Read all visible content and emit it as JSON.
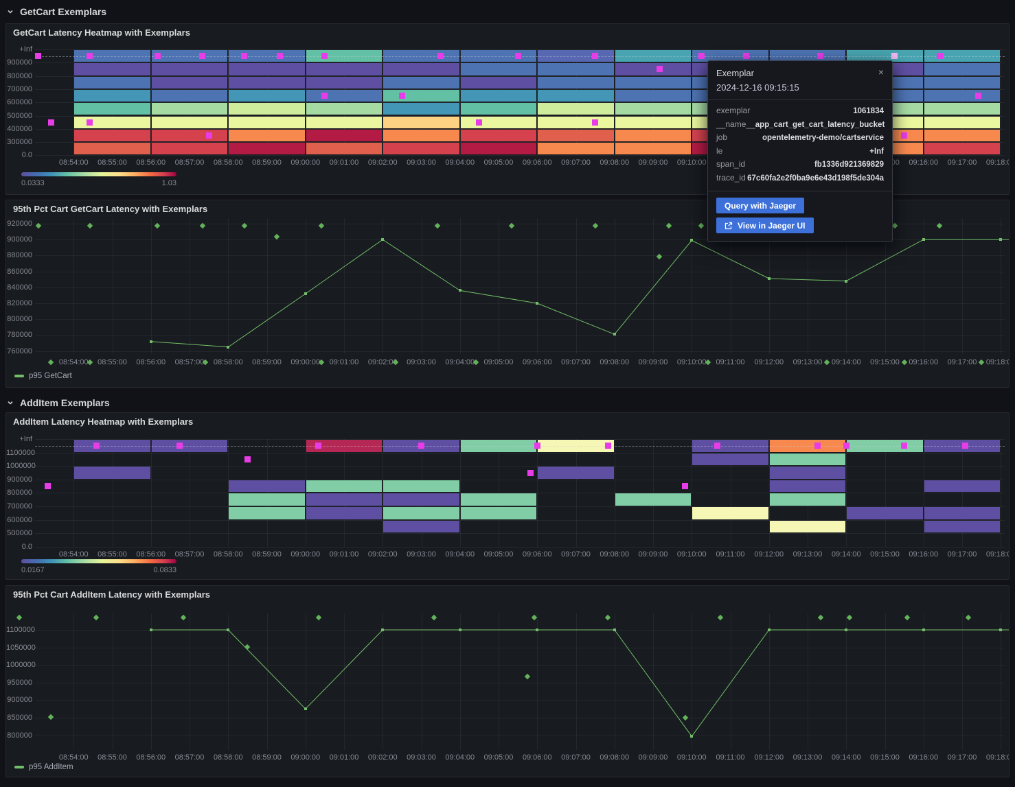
{
  "sections": [
    {
      "title": "GetCart Exemplars"
    },
    {
      "title": "AddItem Exemplars"
    }
  ],
  "axis": {
    "x_ticks": [
      "08:54:00",
      "08:55:00",
      "08:56:00",
      "08:57:00",
      "08:58:00",
      "08:59:00",
      "09:00:00",
      "09:01:00",
      "09:02:00",
      "09:03:00",
      "09:04:00",
      "09:05:00",
      "09:06:00",
      "09:07:00",
      "09:08:00",
      "09:09:00",
      "09:10:00",
      "09:11:00",
      "09:12:00",
      "09:13:00",
      "09:14:00",
      "09:15:00",
      "09:16:00",
      "09:17:00",
      "09:18:00"
    ]
  },
  "palette": {
    "P": "#5e4fa2",
    "B": "#4d73b2",
    "BP": "#5767b2",
    "T": "#4396b5",
    "T2": "#47a4b0",
    "TG": "#62c0a4",
    "G": "#a5daa3",
    "YG": "#cfec9d",
    "PY": "#eaf79e",
    "PE": "#fdd283",
    "O": "#f7894f",
    "OR": "#e0604d",
    "R": "#d5424e",
    "C": "#b41b44",
    "C2": "#b52755",
    "G2": "#80cda6",
    "PY2": "#f6f7b4"
  },
  "colors": {
    "line_green": "#73bf69",
    "exemplar_magenta": "#e93ce9",
    "exemplar_selected": "#eeb7ee",
    "diamond_green": "#63b25a"
  },
  "panels": {
    "hm_getcart": {
      "title": "GetCart Latency Heatmap with Exemplars",
      "y_ticks": [
        "+Inf",
        "900000",
        "800000",
        "700000",
        "600000",
        "500000",
        "400000",
        "300000",
        "0.0"
      ],
      "rows": [
        [
          "B",
          "B",
          "B",
          "TG",
          "B",
          "B",
          "BP",
          "T2",
          "B",
          "B",
          "T2",
          "T2"
        ],
        [
          "P",
          "P",
          "P",
          "P",
          "P",
          "B",
          "B",
          "P",
          "P",
          "P",
          "P",
          "B"
        ],
        [
          "B",
          "P",
          "P",
          "P",
          "B",
          "P",
          "B",
          "B",
          "B",
          "B",
          "B",
          "B"
        ],
        [
          "T",
          "B",
          "T",
          "B",
          "TG",
          "T",
          "T",
          "B",
          "B",
          "B",
          "B",
          "B"
        ],
        [
          "TG",
          "G",
          "YG",
          "G",
          "T",
          "TG",
          "YG",
          "G",
          "G",
          "G",
          "G",
          "G"
        ],
        [
          "PY",
          "PY",
          "PY",
          "PY",
          "PE",
          "PY",
          "PY",
          "PY",
          "PY",
          "PY",
          "PY",
          "PY"
        ],
        [
          "R",
          "R",
          "O",
          "C",
          "O",
          "R",
          "OR",
          "O",
          "R",
          "R",
          "O",
          "O"
        ],
        [
          "OR",
          "R",
          "C",
          "OR",
          "R",
          "C",
          "O",
          "O",
          "C",
          "R",
          "O",
          "R"
        ]
      ],
      "exemplars": [
        {
          "t": "08:53:05",
          "row": 0
        },
        {
          "t": "08:54:25",
          "row": 0
        },
        {
          "t": "08:56:10",
          "row": 0
        },
        {
          "t": "08:57:20",
          "row": 0
        },
        {
          "t": "08:58:25",
          "row": 0
        },
        {
          "t": "08:59:20",
          "row": 0
        },
        {
          "t": "09:00:30",
          "row": 0
        },
        {
          "t": "09:03:30",
          "row": 0
        },
        {
          "t": "09:05:30",
          "row": 0
        },
        {
          "t": "09:07:30",
          "row": 0
        },
        {
          "t": "09:10:15",
          "row": 0
        },
        {
          "t": "09:11:25",
          "row": 0
        },
        {
          "t": "09:13:20",
          "row": 0
        },
        {
          "t": "09:15:15",
          "row": 0,
          "selected": true
        },
        {
          "t": "09:16:25",
          "row": 0
        },
        {
          "t": "09:09:10",
          "row": 1
        },
        {
          "t": "09:00:30",
          "row": 3
        },
        {
          "t": "09:02:30",
          "row": 3
        },
        {
          "t": "09:17:25",
          "row": 3
        },
        {
          "t": "08:53:25",
          "row": 5
        },
        {
          "t": "08:54:25",
          "row": 5
        },
        {
          "t": "09:04:30",
          "row": 5
        },
        {
          "t": "09:07:30",
          "row": 5
        },
        {
          "t": "08:57:30",
          "row": 6
        },
        {
          "t": "09:15:30",
          "row": 6
        }
      ],
      "legend": {
        "min": "0.0333",
        "max": "1.03"
      }
    },
    "ts_getcart": {
      "title": "95th Pct Cart GetCart Latency with Exemplars",
      "y_ticks": [
        "920000",
        "900000",
        "880000",
        "860000",
        "840000",
        "820000",
        "800000",
        "780000",
        "760000"
      ],
      "series": {
        "name": "p95 GetCart",
        "points": [
          {
            "t": "08:56:00",
            "v": 772000
          },
          {
            "t": "08:58:00",
            "v": 765000
          },
          {
            "t": "09:00:00",
            "v": 832000
          },
          {
            "t": "09:02:00",
            "v": 900000
          },
          {
            "t": "09:04:00",
            "v": 836000
          },
          {
            "t": "09:06:00",
            "v": 820000
          },
          {
            "t": "09:08:00",
            "v": 781000
          },
          {
            "t": "09:10:00",
            "v": 899000
          },
          {
            "t": "09:12:00",
            "v": 851000
          },
          {
            "t": "09:14:00",
            "v": 848000
          },
          {
            "t": "09:16:00",
            "v": 900000
          },
          {
            "t": "09:18:00",
            "v": 900000
          }
        ]
      },
      "exemplars": [
        {
          "t": "08:53:05",
          "v": 917500
        },
        {
          "t": "08:54:25",
          "v": 917500
        },
        {
          "t": "08:56:10",
          "v": 917500
        },
        {
          "t": "08:57:20",
          "v": 917500
        },
        {
          "t": "08:58:25",
          "v": 917500
        },
        {
          "t": "09:00:25",
          "v": 917500
        },
        {
          "t": "09:03:25",
          "v": 917500
        },
        {
          "t": "09:05:20",
          "v": 917500
        },
        {
          "t": "09:07:30",
          "v": 917500
        },
        {
          "t": "09:09:25",
          "v": 917500
        },
        {
          "t": "09:10:15",
          "v": 917500
        },
        {
          "t": "09:15:15",
          "v": 917500
        },
        {
          "t": "09:16:25",
          "v": 917500
        },
        {
          "t": "08:59:15",
          "v": 904000
        },
        {
          "t": "09:09:10",
          "v": 879000
        },
        {
          "t": "08:53:25",
          "v": 746000
        },
        {
          "t": "08:54:25",
          "v": 746000
        },
        {
          "t": "08:57:25",
          "v": 746000
        },
        {
          "t": "09:00:25",
          "v": 746000
        },
        {
          "t": "09:02:20",
          "v": 746000
        },
        {
          "t": "09:04:25",
          "v": 746000
        },
        {
          "t": "09:10:25",
          "v": 746000
        },
        {
          "t": "09:13:30",
          "v": 746000
        },
        {
          "t": "09:15:30",
          "v": 746000
        },
        {
          "t": "09:17:30",
          "v": 746000
        }
      ]
    },
    "hm_additem": {
      "title": "AddItem Latency Heatmap with Exemplars",
      "y_ticks": [
        "+Inf",
        "1100000",
        "1000000",
        "900000",
        "800000",
        "700000",
        "600000",
        "500000",
        "0.0"
      ],
      "rows": [
        [
          "P",
          "P",
          "",
          "C2",
          "P",
          "G2",
          "PY2",
          "",
          "P",
          "O",
          "G2",
          "P"
        ],
        [
          "",
          "",
          "",
          "",
          "",
          "",
          "",
          "",
          "P",
          "G2",
          "",
          ""
        ],
        [
          "P",
          "",
          "",
          "",
          "",
          "",
          "P",
          "",
          "",
          "P",
          "",
          ""
        ],
        [
          "",
          "",
          "P",
          "G2",
          "G2",
          "",
          "",
          "",
          "",
          "P",
          "",
          "P"
        ],
        [
          "",
          "",
          "G2",
          "P",
          "P",
          "G2",
          "",
          "G2",
          "",
          "G2",
          "",
          ""
        ],
        [
          "",
          "",
          "G2",
          "P",
          "G2",
          "G2",
          "",
          "",
          "PY2",
          "",
          "P",
          "P"
        ],
        [
          "",
          "",
          "",
          "",
          "P",
          "",
          "",
          "",
          "",
          "PY2",
          "",
          "P"
        ],
        [
          "",
          "",
          "",
          "",
          "",
          "",
          "",
          "",
          "",
          "",
          "",
          ""
        ]
      ],
      "exemplars": [
        {
          "t": "08:54:35",
          "row": 0
        },
        {
          "t": "08:56:45",
          "row": 0
        },
        {
          "t": "09:00:20",
          "row": 0
        },
        {
          "t": "09:03:00",
          "row": 0
        },
        {
          "t": "09:06:00",
          "row": 0
        },
        {
          "t": "09:07:50",
          "row": 0
        },
        {
          "t": "09:10:40",
          "row": 0
        },
        {
          "t": "09:13:15",
          "row": 0
        },
        {
          "t": "09:14:00",
          "row": 0
        },
        {
          "t": "09:15:30",
          "row": 0
        },
        {
          "t": "09:17:05",
          "row": 0
        },
        {
          "t": "08:58:30",
          "row": 1
        },
        {
          "t": "09:05:50",
          "row": 2
        },
        {
          "t": "08:53:20",
          "row": 3
        },
        {
          "t": "09:09:50",
          "row": 3
        }
      ],
      "legend": {
        "min": "0.0167",
        "max": "0.0833"
      }
    },
    "ts_additem": {
      "title": "95th Pct Cart AddItem Latency with Exemplars",
      "y_ticks": [
        "1100000",
        "1050000",
        "1000000",
        "950000",
        "900000",
        "850000",
        "800000"
      ],
      "series": {
        "name": "p95 AddItem",
        "points": [
          {
            "t": "08:56:00",
            "v": 1100000
          },
          {
            "t": "08:58:00",
            "v": 1100000
          },
          {
            "t": "09:00:00",
            "v": 875000
          },
          {
            "t": "09:02:00",
            "v": 1100000
          },
          {
            "t": "09:04:00",
            "v": 1100000
          },
          {
            "t": "09:06:00",
            "v": 1100000
          },
          {
            "t": "09:08:00",
            "v": 1100000
          },
          {
            "t": "09:10:00",
            "v": 797000
          },
          {
            "t": "09:12:00",
            "v": 1100000
          },
          {
            "t": "09:14:00",
            "v": 1100000
          },
          {
            "t": "09:16:00",
            "v": 1100000
          },
          {
            "t": "09:18:00",
            "v": 1100000
          }
        ]
      },
      "exemplars": [
        {
          "t": "08:52:35",
          "v": 1135000
        },
        {
          "t": "08:54:35",
          "v": 1135000
        },
        {
          "t": "08:56:50",
          "v": 1135000
        },
        {
          "t": "09:00:20",
          "v": 1135000
        },
        {
          "t": "09:03:20",
          "v": 1135000
        },
        {
          "t": "09:05:55",
          "v": 1135000
        },
        {
          "t": "09:07:50",
          "v": 1135000
        },
        {
          "t": "09:10:45",
          "v": 1135000
        },
        {
          "t": "09:13:20",
          "v": 1135000
        },
        {
          "t": "09:14:05",
          "v": 1135000
        },
        {
          "t": "09:15:35",
          "v": 1135000
        },
        {
          "t": "09:17:10",
          "v": 1135000
        },
        {
          "t": "08:53:25",
          "v": 852000
        },
        {
          "t": "08:58:30",
          "v": 1052000
        },
        {
          "t": "09:05:45",
          "v": 967000
        },
        {
          "t": "09:09:50",
          "v": 850000
        }
      ]
    }
  },
  "tooltip": {
    "title": "Exemplar",
    "close": "×",
    "timestamp": "2024-12-16 09:15:15",
    "rows": [
      {
        "key": "exemplar",
        "value": "1061834"
      },
      {
        "key": "__name__",
        "value": "app_cart_get_cart_latency_bucket"
      },
      {
        "key": "job",
        "value": "opentelemetry-demo/cartservice"
      },
      {
        "key": "le",
        "value": "+Inf"
      },
      {
        "key": "span_id",
        "value": "fb1336d921369829"
      },
      {
        "key": "trace_id",
        "value": "67c60fa2e2f0ba9e6e43d198f5de304a"
      }
    ],
    "buttons": [
      {
        "label": "Query with Jaeger"
      },
      {
        "label": "View in Jaeger UI",
        "icon": "external-link-icon"
      }
    ]
  }
}
